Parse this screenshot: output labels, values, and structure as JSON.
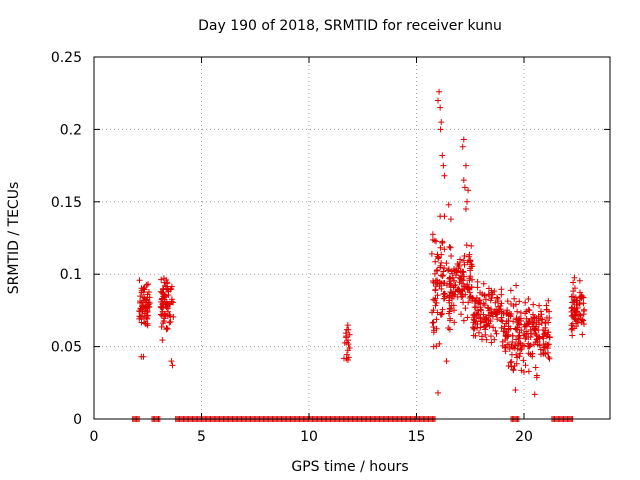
{
  "chart_data": {
    "type": "scatter",
    "title": "Day 190 of 2018, SRMTID for receiver kunu",
    "xlabel": "GPS time / hours",
    "ylabel": "SRMTID / TECUs",
    "xlim": [
      0,
      24
    ],
    "ylim": [
      0,
      0.25
    ],
    "grid": true,
    "marker": "+",
    "color": "#e00000",
    "xticks": [
      0,
      5,
      10,
      15,
      20
    ],
    "xtick_labels": [
      "0",
      "5",
      "10",
      "15",
      "20"
    ],
    "yticks": [
      0,
      0.05,
      0.1,
      0.15,
      0.2,
      0.25
    ],
    "ytick_labels": [
      "0",
      "0.05",
      "0.1",
      "0.15",
      "0.2",
      "0.25"
    ],
    "clusters": [
      {
        "x": [
          2.1,
          2.6
        ],
        "y": [
          0.055,
          0.103
        ],
        "n": 70
      },
      {
        "x": [
          3.1,
          3.7
        ],
        "y": [
          0.05,
          0.109
        ],
        "n": 75
      },
      {
        "x": [
          11.6,
          11.9
        ],
        "y": [
          0.034,
          0.074
        ],
        "n": 18
      },
      {
        "x": [
          15.7,
          16.6
        ],
        "y": [
          0.045,
          0.14
        ],
        "n": 90
      },
      {
        "x": [
          16.5,
          17.6
        ],
        "y": [
          0.06,
          0.13
        ],
        "n": 110
      },
      {
        "x": [
          17.6,
          19.0
        ],
        "y": [
          0.045,
          0.1
        ],
        "n": 120
      },
      {
        "x": [
          19.0,
          21.2
        ],
        "y": [
          0.025,
          0.095
        ],
        "n": 220
      },
      {
        "x": [
          22.2,
          22.8
        ],
        "y": [
          0.045,
          0.105
        ],
        "n": 70
      }
    ],
    "points": [
      [
        2.2,
        0.043
      ],
      [
        2.3,
        0.043
      ],
      [
        3.6,
        0.04
      ],
      [
        3.65,
        0.037
      ],
      [
        16.0,
        0.22
      ],
      [
        16.05,
        0.226
      ],
      [
        16.1,
        0.215
      ],
      [
        16.12,
        0.2
      ],
      [
        16.15,
        0.205
      ],
      [
        16.2,
        0.182
      ],
      [
        16.25,
        0.175
      ],
      [
        16.3,
        0.168
      ],
      [
        16.1,
        0.14
      ],
      [
        16.3,
        0.14
      ],
      [
        16.5,
        0.148
      ],
      [
        16.6,
        0.138
      ],
      [
        17.2,
        0.193
      ],
      [
        17.15,
        0.188
      ],
      [
        17.3,
        0.175
      ],
      [
        17.2,
        0.165
      ],
      [
        17.25,
        0.16
      ],
      [
        17.4,
        0.158
      ],
      [
        17.35,
        0.15
      ],
      [
        17.3,
        0.145
      ],
      [
        15.8,
        0.05
      ],
      [
        16.0,
        0.018
      ],
      [
        16.4,
        0.04
      ],
      [
        19.6,
        0.02
      ],
      [
        20.5,
        0.017
      ],
      [
        20.6,
        0.03
      ]
    ],
    "zero_segments": [
      [
        1.8,
        2.1
      ],
      [
        2.7,
        3.1
      ],
      [
        3.8,
        15.9
      ],
      [
        19.4,
        19.8
      ],
      [
        21.3,
        22.3
      ]
    ]
  }
}
